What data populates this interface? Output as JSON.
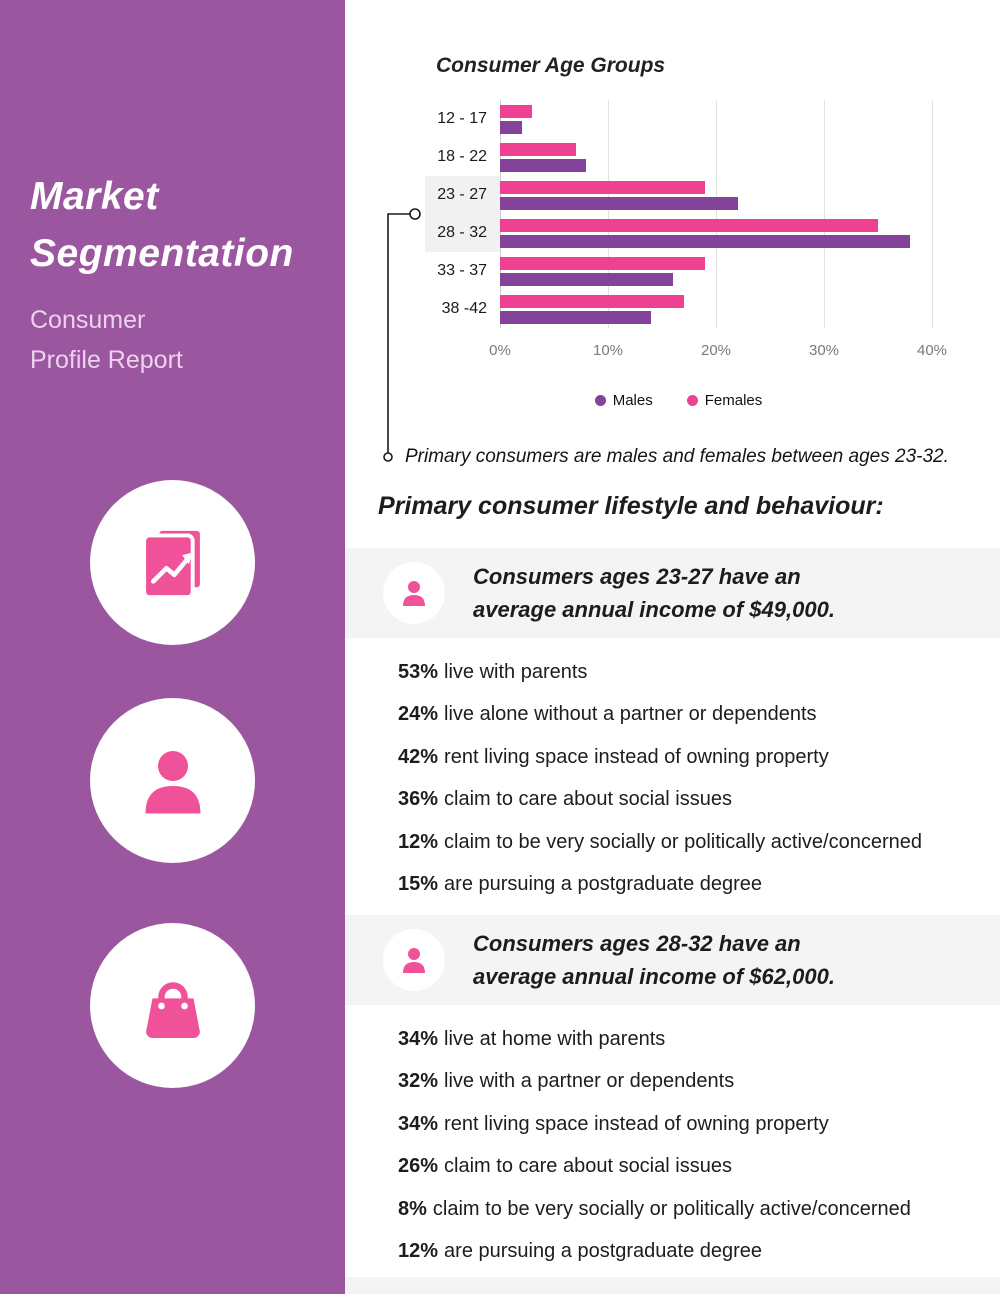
{
  "colors": {
    "sidebar_purple": "#9a569e",
    "male_purple": "#83439a",
    "female_pink": "#ee4191",
    "icon_pink": "#ef5298",
    "band_gray": "#f4f4f4"
  },
  "sidebar": {
    "title_lines": [
      "Market",
      "Segmentation"
    ],
    "subtitle_lines": [
      "Consumer",
      "Profile Report"
    ],
    "icons": [
      "report-chart-icon",
      "person-icon",
      "shopping-bag-icon"
    ]
  },
  "chart_data": {
    "type": "bar",
    "orientation": "horizontal",
    "title": "Consumer Age Groups",
    "categories": [
      "12 - 17",
      "18 - 22",
      "23 - 27",
      "28 - 32",
      "33 - 37",
      "38 -42"
    ],
    "series": [
      {
        "name": "Males",
        "color": "#83439a",
        "values": [
          2,
          8,
          22,
          38,
          16,
          14
        ]
      },
      {
        "name": "Females",
        "color": "#ee4191",
        "values": [
          3,
          7,
          19,
          35,
          19,
          17
        ]
      }
    ],
    "x_ticks": [
      "0%",
      "10%",
      "20%",
      "30%",
      "40%"
    ],
    "xlim": [
      0,
      40
    ],
    "grid": true,
    "legend_position": "bottom",
    "highlighted_categories": [
      "23 - 27",
      "28 - 32"
    ]
  },
  "callout": {
    "note": "Primary consumers are males and females between ages 23-32."
  },
  "main": {
    "section_heading": "Primary consumer lifestyle and behaviour:",
    "groups": [
      {
        "icon": "person-icon",
        "heading_lines": [
          "Consumers ages 23-27 have an",
          "average annual income of $49,000."
        ],
        "stats": [
          {
            "pct": "53%",
            "text": "live with parents"
          },
          {
            "pct": "24%",
            "text": "live alone without a partner or dependents"
          },
          {
            "pct": "42%",
            "text": "rent living space instead of owning property"
          },
          {
            "pct": "36%",
            "text": "claim to care about social issues"
          },
          {
            "pct": "12%",
            "text": "claim to be very socially or politically active/concerned"
          },
          {
            "pct": "15%",
            "text": "are pursuing a postgraduate degree"
          }
        ]
      },
      {
        "icon": "person-icon",
        "heading_lines": [
          "Consumers ages 28-32 have an",
          "average annual income of $62,000."
        ],
        "stats": [
          {
            "pct": "34%",
            "text": "live at home with parents"
          },
          {
            "pct": "32%",
            "text": "live with a partner or dependents"
          },
          {
            "pct": "34%",
            "text": "rent living space instead of owning property"
          },
          {
            "pct": "26%",
            "text": "claim to care about social issues"
          },
          {
            "pct": "8%",
            "text": "claim to be very socially or politically active/concerned"
          },
          {
            "pct": "12%",
            "text": "are pursuing a postgraduate degree"
          }
        ]
      }
    ]
  }
}
